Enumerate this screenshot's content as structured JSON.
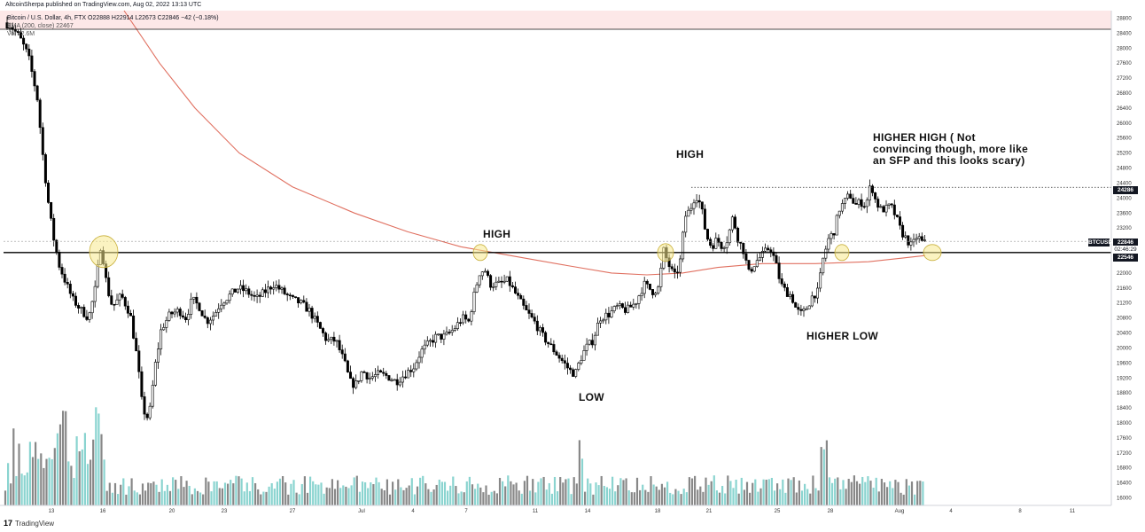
{
  "header": {
    "credit": "AltcoinSherpa published on TradingView.com, Aug 02, 2022 13:13 UTC",
    "symbol_line": "Bitcoin / U.S. Dollar, 4h, FTX  O22888  H22914  L22673  C22846  −42 (−0.18%)",
    "ema_line": "EMA (200, close)  22467",
    "vol_line": "Vol  22.6M"
  },
  "annotations": {
    "high_1": "HIGH",
    "low_1": "LOW",
    "high_2": "HIGH",
    "higher_high": "HIGHER HIGH ( Not convincing though, more like an SFP and this looks scary)",
    "higher_low": "HIGHER LOW"
  },
  "price_labels": {
    "line": "24286",
    "symbol": "BTCUSD",
    "last": "22846",
    "countdown": "02:46:29",
    "support": "22546"
  },
  "branding": {
    "logo": "17",
    "name": "TradingView"
  },
  "colors": {
    "up": "#ffffff",
    "down": "#000000",
    "ema": "#e07060",
    "vol_up": "#8ad4d0",
    "vol_down": "#888888",
    "support_line": "#000000",
    "circle_fill": "#f7e98e"
  },
  "chart_data": {
    "type": "candlestick",
    "y_axis": {
      "min": 15800,
      "max": 29000,
      "ticks": [
        16000,
        16400,
        16800,
        17200,
        17600,
        18000,
        18400,
        18800,
        19200,
        19600,
        20000,
        20400,
        20800,
        21200,
        21600,
        22000,
        22400,
        22800,
        23200,
        23600,
        24000,
        24400,
        24800,
        25200,
        25600,
        26000,
        26400,
        26800,
        27200,
        27600,
        28000,
        28400,
        28800
      ]
    },
    "x_axis": {
      "ticks": [
        "13",
        "16",
        "20",
        "23",
        "27",
        "Jul",
        "4",
        "7",
        "11",
        "14",
        "18",
        "21",
        "25",
        "28",
        "Aug",
        "4",
        "8",
        "11"
      ]
    },
    "support_level": 22546,
    "resistance_level": 24286,
    "last_close": 22846,
    "ema_200_last": 22467,
    "key_points": [
      {
        "label": "HIGH",
        "x": "Jul 8",
        "price": 22520
      },
      {
        "label": "LOW",
        "x": "Jul 13",
        "price": 18900
      },
      {
        "label": "HIGH",
        "x": "Jul 20",
        "price": 24270
      },
      {
        "label": "HIGHER LOW",
        "x": "Jul 26",
        "price": 20750
      },
      {
        "label": "HIGHER HIGH",
        "x": "Jul 30",
        "price": 24670
      }
    ],
    "price_path": [
      [
        0,
        29000
      ],
      [
        6,
        28700
      ],
      [
        15,
        28600
      ],
      [
        25,
        28300
      ],
      [
        35,
        27800
      ],
      [
        45,
        26700
      ],
      [
        52,
        25000
      ],
      [
        58,
        23800
      ],
      [
        63,
        23000
      ],
      [
        70,
        22200
      ],
      [
        78,
        21700
      ],
      [
        85,
        21300
      ],
      [
        95,
        21000
      ],
      [
        103,
        20800
      ],
      [
        110,
        21500
      ],
      [
        117,
        22800
      ],
      [
        124,
        21600
      ],
      [
        130,
        21100
      ],
      [
        140,
        21400
      ],
      [
        150,
        20900
      ],
      [
        158,
        19700
      ],
      [
        163,
        18600
      ],
      [
        168,
        18100
      ],
      [
        172,
        18300
      ],
      [
        178,
        19500
      ],
      [
        185,
        20500
      ],
      [
        195,
        20900
      ],
      [
        205,
        21000
      ],
      [
        213,
        20800
      ],
      [
        220,
        21300
      ],
      [
        228,
        21100
      ],
      [
        236,
        20700
      ],
      [
        245,
        20900
      ],
      [
        252,
        21200
      ],
      [
        262,
        21400
      ],
      [
        272,
        21600
      ],
      [
        282,
        21500
      ],
      [
        292,
        21300
      ],
      [
        302,
        21500
      ],
      [
        312,
        21700
      ],
      [
        322,
        21500
      ],
      [
        332,
        21300
      ],
      [
        342,
        21200
      ],
      [
        352,
        21000
      ],
      [
        362,
        20600
      ],
      [
        372,
        20200
      ],
      [
        382,
        20200
      ],
      [
        392,
        19600
      ],
      [
        398,
        19100
      ],
      [
        404,
        19000
      ],
      [
        412,
        19400
      ],
      [
        420,
        19200
      ],
      [
        430,
        19300
      ],
      [
        440,
        19250
      ],
      [
        450,
        19100
      ],
      [
        460,
        19300
      ],
      [
        470,
        19500
      ],
      [
        478,
        19900
      ],
      [
        486,
        20100
      ],
      [
        495,
        20300
      ],
      [
        505,
        20300
      ],
      [
        515,
        20500
      ],
      [
        525,
        20800
      ],
      [
        532,
        20700
      ],
      [
        538,
        21400
      ],
      [
        544,
        22000
      ],
      [
        550,
        22100
      ],
      [
        556,
        21700
      ],
      [
        566,
        21700
      ],
      [
        576,
        21800
      ],
      [
        586,
        21400
      ],
      [
        596,
        21000
      ],
      [
        606,
        20700
      ],
      [
        616,
        20300
      ],
      [
        626,
        20000
      ],
      [
        636,
        19700
      ],
      [
        646,
        19400
      ],
      [
        652,
        19300
      ],
      [
        658,
        19700
      ],
      [
        664,
        20000
      ],
      [
        672,
        20200
      ],
      [
        680,
        20800
      ],
      [
        690,
        20900
      ],
      [
        700,
        21100
      ],
      [
        710,
        21000
      ],
      [
        720,
        21200
      ],
      [
        730,
        21700
      ],
      [
        740,
        21500
      ],
      [
        746,
        21600
      ],
      [
        752,
        22600
      ],
      [
        758,
        22200
      ],
      [
        764,
        21900
      ],
      [
        770,
        22200
      ],
      [
        776,
        23500
      ],
      [
        782,
        23700
      ],
      [
        788,
        24100
      ],
      [
        794,
        23800
      ],
      [
        800,
        23000
      ],
      [
        806,
        22700
      ],
      [
        812,
        22900
      ],
      [
        818,
        22700
      ],
      [
        824,
        22900
      ],
      [
        830,
        23500
      ],
      [
        836,
        22900
      ],
      [
        842,
        22600
      ],
      [
        848,
        22000
      ],
      [
        856,
        22300
      ],
      [
        864,
        22500
      ],
      [
        872,
        22700
      ],
      [
        878,
        22300
      ],
      [
        884,
        21700
      ],
      [
        890,
        21500
      ],
      [
        896,
        21400
      ],
      [
        902,
        21000
      ],
      [
        908,
        20900
      ],
      [
        914,
        21100
      ],
      [
        920,
        21400
      ],
      [
        926,
        21500
      ],
      [
        932,
        22400
      ],
      [
        938,
        22900
      ],
      [
        944,
        23100
      ],
      [
        950,
        23700
      ],
      [
        956,
        23900
      ],
      [
        962,
        24100
      ],
      [
        968,
        23800
      ],
      [
        974,
        23900
      ],
      [
        980,
        23800
      ],
      [
        986,
        24400
      ],
      [
        990,
        24000
      ],
      [
        996,
        23700
      ],
      [
        1002,
        23700
      ],
      [
        1008,
        23800
      ],
      [
        1014,
        23500
      ],
      [
        1020,
        23100
      ],
      [
        1026,
        22900
      ],
      [
        1032,
        22700
      ],
      [
        1038,
        23000
      ],
      [
        1044,
        22800
      ]
    ],
    "ema_path": [
      [
        140,
        29000
      ],
      [
        180,
        27600
      ],
      [
        220,
        26400
      ],
      [
        270,
        25200
      ],
      [
        330,
        24300
      ],
      [
        400,
        23600
      ],
      [
        460,
        23100
      ],
      [
        520,
        22700
      ],
      [
        580,
        22450
      ],
      [
        640,
        22200
      ],
      [
        690,
        22000
      ],
      [
        730,
        21950
      ],
      [
        770,
        22000
      ],
      [
        810,
        22150
      ],
      [
        860,
        22250
      ],
      [
        920,
        22250
      ],
      [
        980,
        22300
      ],
      [
        1044,
        22467
      ]
    ]
  }
}
